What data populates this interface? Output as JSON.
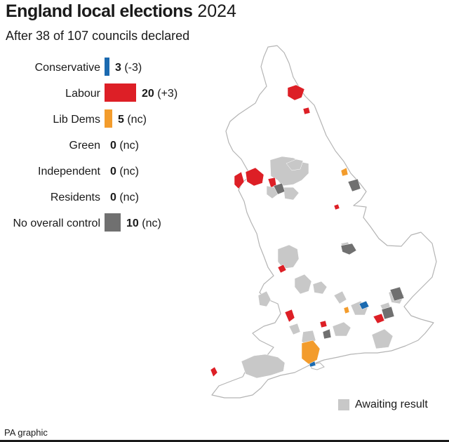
{
  "header": {
    "title_bold": "England local elections",
    "title_year": "2024",
    "subtitle": "After 38 of 107 councils declared"
  },
  "chart_data": {
    "type": "bar",
    "categories": [
      "Conservative",
      "Labour",
      "Lib Dems",
      "Green",
      "Independent",
      "Residents",
      "No overall control"
    ],
    "values": [
      3,
      20,
      5,
      0,
      0,
      0,
      10
    ],
    "changes": [
      "(-3)",
      "(+3)",
      "(nc)",
      "(nc)",
      "(nc)",
      "(nc)",
      "(nc)"
    ],
    "colors": [
      "#1b6ab0",
      "#dd1f26",
      "#f39c2c",
      "#4aa94a",
      "#999999",
      "#999999",
      "#707070"
    ]
  },
  "map": {
    "awaiting_color": "#c8c8c8",
    "outline_color": "#b4b4b4"
  },
  "legend": {
    "awaiting_label": "Awaiting result"
  },
  "footer": {
    "source": "PA graphic"
  }
}
